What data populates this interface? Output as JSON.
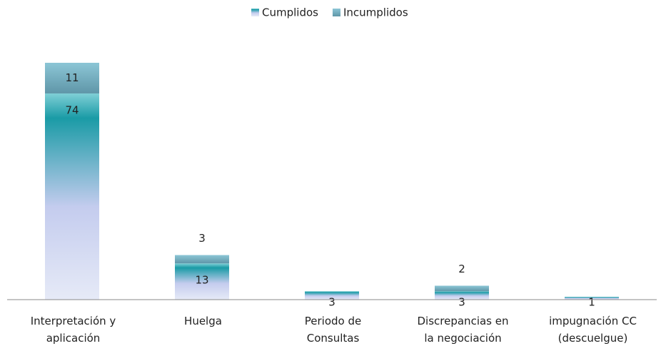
{
  "chart_data": {
    "type": "stacked-bar",
    "categories": [
      "Interpretación y\naplicación",
      "Huelga",
      "Periodo de\nConsultas",
      "Discrepancias en\nla negociación",
      "impugnación CC\n(descuelgue)"
    ],
    "series": [
      {
        "name": "Cumplidos",
        "color": "#1a9ba6",
        "values": [
          74,
          13,
          3,
          3,
          1
        ]
      },
      {
        "name": "Incumplidos",
        "color": "#6fa6b8",
        "values": [
          11,
          3,
          null,
          2,
          null
        ]
      }
    ],
    "legend": "top"
  }
}
